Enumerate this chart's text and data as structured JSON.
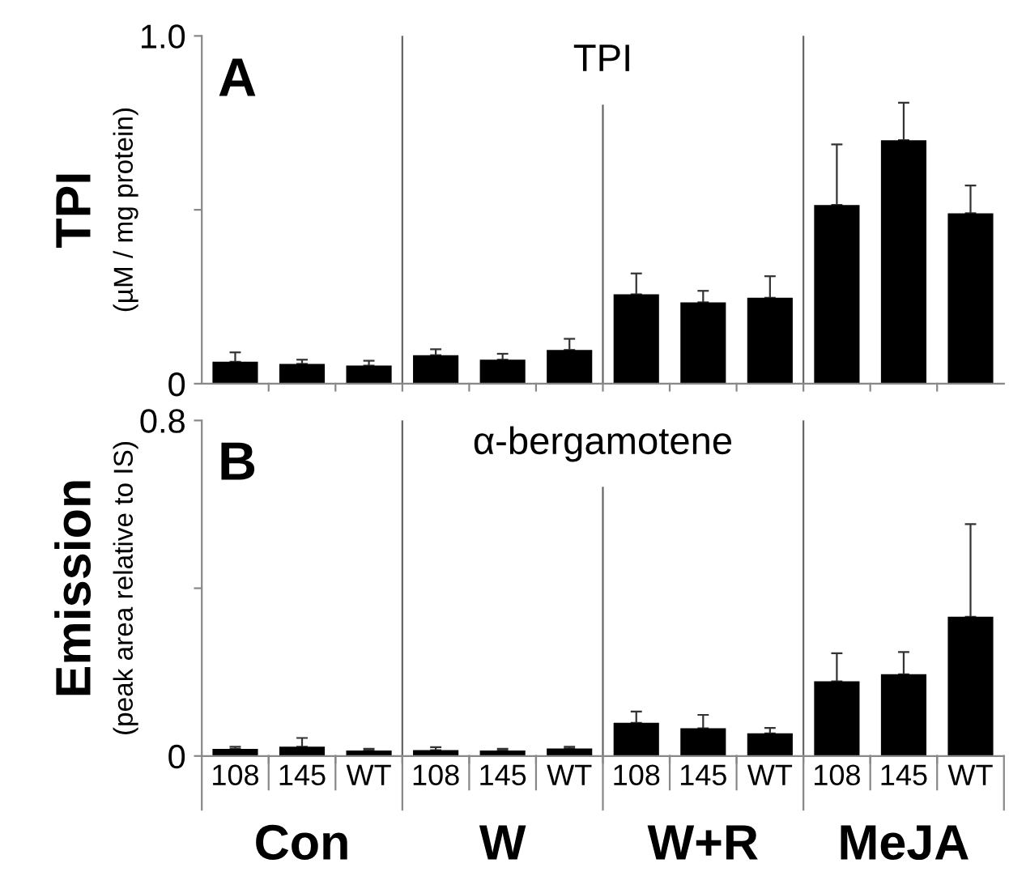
{
  "chart_data": [
    {
      "type": "bar",
      "title": "TPI",
      "ylabel": "TPI\n(µM / mg protein)",
      "categories": [
        null,
        null,
        null,
        null,
        null,
        null,
        null,
        null,
        null,
        null,
        null,
        null
      ],
      "values": [
        0.063,
        0.057,
        0.052,
        0.082,
        0.069,
        0.097,
        0.257,
        0.234,
        0.247,
        0.514,
        0.7,
        0.49
      ],
      "errors": [
        [
          0.063,
          0.09
        ],
        [
          0.057,
          0.069
        ],
        [
          0.052,
          0.066
        ],
        [
          0.082,
          0.099
        ],
        [
          0.069,
          0.086
        ],
        [
          0.097,
          0.129
        ],
        [
          0.257,
          0.317
        ],
        [
          0.234,
          0.267
        ],
        [
          0.247,
          0.309
        ],
        [
          0.514,
          0.688
        ],
        [
          0.7,
          0.808
        ],
        [
          0.49,
          0.57
        ]
      ],
      "color": "#000000",
      "ylim": [
        0,
        1.0
      ],
      "yticks": [
        {
          "value": 0,
          "label": "0"
        },
        {
          "value": 0.5,
          "label": null
        },
        {
          "value": 1.0,
          "label": "1.0"
        }
      ],
      "annotations": [
        "A"
      ],
      "tick_labels": "y",
      "grid": false
    },
    {
      "type": "bar",
      "title": "α-bergamotene",
      "ylabel": "Emission\n(peak area relative to IS)",
      "categories": [
        "108",
        "145",
        "WT",
        "108",
        "145",
        "WT",
        "108",
        "145",
        "WT",
        "108",
        "145",
        "WT"
      ],
      "values": [
        0.017,
        0.022,
        0.013,
        0.014,
        0.013,
        0.018,
        0.079,
        0.066,
        0.054,
        0.178,
        0.195,
        0.332
      ],
      "errors": [
        [
          0.017,
          0.022
        ],
        [
          0.022,
          0.043
        ],
        [
          0.013,
          0.017
        ],
        [
          0.014,
          0.021
        ],
        [
          0.013,
          0.017
        ],
        [
          0.018,
          0.022
        ],
        [
          0.079,
          0.106
        ],
        [
          0.066,
          0.098
        ],
        [
          0.054,
          0.067
        ],
        [
          0.178,
          0.245
        ],
        [
          0.195,
          0.248
        ],
        [
          0.332,
          0.553
        ]
      ],
      "color": "#000000",
      "ylim": [
        0,
        0.8
      ],
      "yticks": [
        {
          "value": 0,
          "label": "0"
        },
        {
          "value": 0.4,
          "label": null
        },
        {
          "value": 0.8,
          "label": "0.8"
        }
      ],
      "annotations": [
        "B",
        "Con",
        "W",
        "W+R",
        "MeJA"
      ],
      "grid": false
    }
  ]
}
